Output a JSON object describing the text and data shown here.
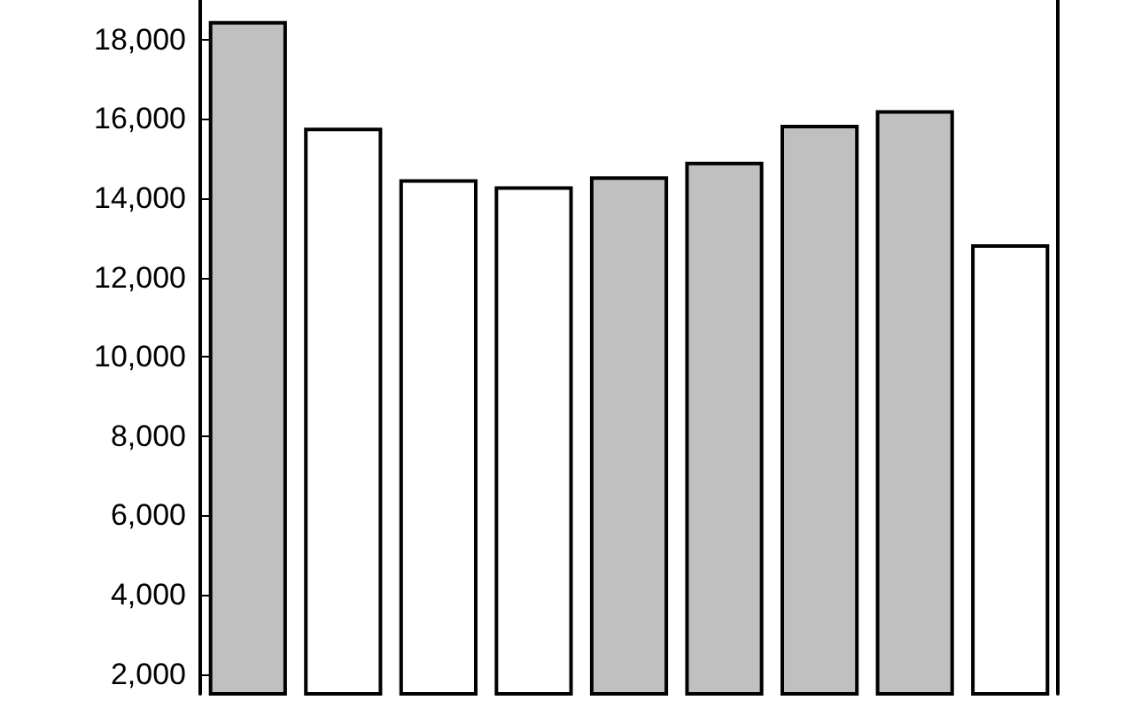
{
  "chart_data": {
    "type": "bar",
    "categories": [
      null,
      null,
      null,
      null,
      null,
      null,
      null,
      null,
      null
    ],
    "values": [
      18470,
      15780,
      14480,
      14300,
      14550,
      14920,
      15850,
      16220,
      12840
    ],
    "colors": [
      "#c0c0c0",
      "#ffffff",
      "#ffffff",
      "#ffffff",
      "#c0c0c0",
      "#c0c0c0",
      "#c0c0c0",
      "#c0c0c0",
      "#ffffff"
    ],
    "ylim": [
      1500,
      19000
    ],
    "yticks": [
      {
        "value": 2000,
        "label": "2,000"
      },
      {
        "value": 4000,
        "label": "4,000"
      },
      {
        "value": 6000,
        "label": "6,000"
      },
      {
        "value": 8000,
        "label": "8,000"
      },
      {
        "value": 10000,
        "label": "10,000"
      },
      {
        "value": 12000,
        "label": "12,000"
      },
      {
        "value": 14000,
        "label": "14,000"
      },
      {
        "value": 16000,
        "label": "16,000"
      },
      {
        "value": 18000,
        "label": "18,000"
      }
    ],
    "grid": false
  }
}
